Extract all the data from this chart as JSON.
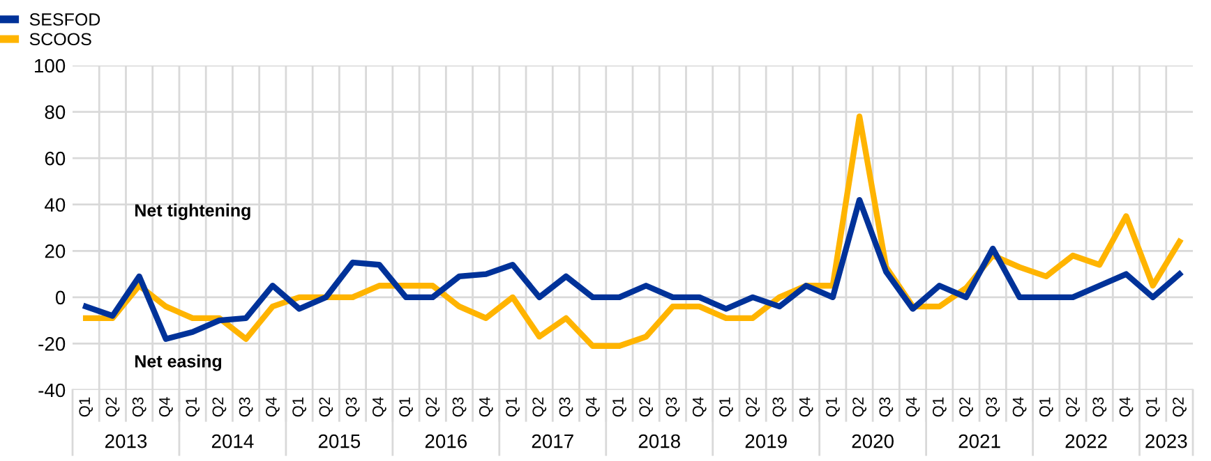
{
  "chart_data": {
    "type": "line",
    "categories": [
      "Q1",
      "Q2",
      "Q3",
      "Q4",
      "Q1",
      "Q2",
      "Q3",
      "Q4",
      "Q1",
      "Q2",
      "Q3",
      "Q4",
      "Q1",
      "Q2",
      "Q3",
      "Q4",
      "Q1",
      "Q2",
      "Q3",
      "Q4",
      "Q1",
      "Q2",
      "Q3",
      "Q4",
      "Q1",
      "Q2",
      "Q3",
      "Q4",
      "Q1",
      "Q2",
      "Q3",
      "Q4",
      "Q1",
      "Q2",
      "Q3",
      "Q4",
      "Q1",
      "Q2",
      "Q3",
      "Q4",
      "Q1",
      "Q2"
    ],
    "series": [
      {
        "name": "SESFOD",
        "color": "#003299",
        "values": [
          -4,
          -8,
          9,
          -18,
          -15,
          -10,
          -9,
          5,
          -5,
          0,
          15,
          14,
          0,
          0,
          9,
          10,
          14,
          0,
          9,
          0,
          0,
          5,
          0,
          0,
          -5,
          0,
          -4,
          5,
          0,
          42,
          11,
          -5,
          5,
          0,
          21,
          0,
          0,
          0,
          5,
          10,
          0,
          10
        ]
      },
      {
        "name": "SCOOS",
        "color": "#ffb400",
        "values": [
          -9,
          -9,
          5,
          -4,
          -9,
          -9,
          -18,
          -4,
          0,
          0,
          0,
          5,
          5,
          5,
          -4,
          -9,
          0,
          -17,
          -9,
          -21,
          -21,
          -17,
          -4,
          -4,
          -9,
          -9,
          0,
          5,
          5,
          78,
          13,
          -4,
          -4,
          4,
          18,
          13,
          9,
          18,
          14,
          35,
          5,
          24
        ]
      }
    ],
    "ylim": [
      -40,
      100
    ],
    "yticks": [
      -40,
      -20,
      0,
      20,
      40,
      60,
      80,
      100
    ],
    "grid": true,
    "legend": "top left",
    "line_style": "solid",
    "marker": "none",
    "annotations": [
      "Net tightening",
      "Net easing",
      "2013",
      "2014",
      "2015",
      "2016",
      "2017",
      "2018",
      "2019",
      "2020",
      "2021",
      "2022",
      "2023"
    ]
  }
}
